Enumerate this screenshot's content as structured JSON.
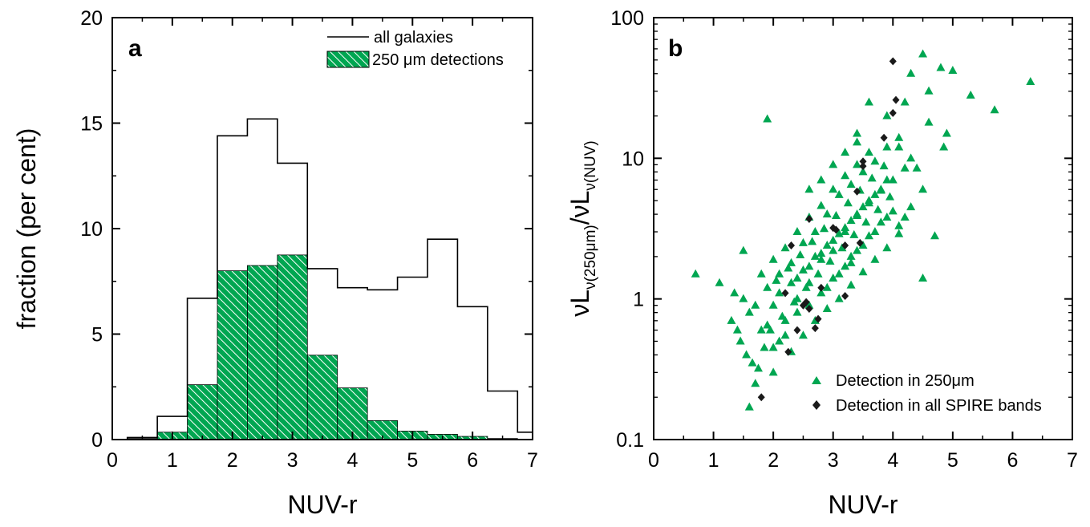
{
  "chart_data": [
    {
      "type": "bar",
      "panel_label": "a",
      "xlabel": "NUV-r",
      "ylabel": "fraction (per cent)",
      "xlim": [
        0,
        7
      ],
      "ylim": [
        0,
        20
      ],
      "xticks": [
        "0",
        "1",
        "2",
        "3",
        "4",
        "5",
        "6",
        "7"
      ],
      "yticks": [
        "0",
        "5",
        "10",
        "15",
        "20"
      ],
      "grid": false,
      "legend_position": "top-right",
      "bin_edges": [
        0.25,
        0.75,
        1.25,
        1.75,
        2.25,
        2.75,
        3.25,
        3.75,
        4.25,
        4.75,
        5.25,
        5.75,
        6.25,
        6.75,
        7.25
      ],
      "series": [
        {
          "name": "all galaxies",
          "style": "step-outline",
          "color": "#000000",
          "values": [
            0.1,
            1.1,
            6.7,
            14.4,
            15.2,
            13.1,
            8.1,
            7.2,
            7.1,
            7.7,
            9.5,
            6.3,
            2.3,
            0.35
          ]
        },
        {
          "name": "250 μm detections",
          "style": "hatched-fill",
          "color": "#00a651",
          "values": [
            0.05,
            0.35,
            2.6,
            8.0,
            8.25,
            8.75,
            4.0,
            2.45,
            0.9,
            0.4,
            0.25,
            0.15,
            0.05,
            0.02
          ]
        }
      ]
    },
    {
      "type": "scatter",
      "panel_label": "b",
      "xlabel": "NUV-r",
      "ylabel_main": "νL",
      "ylabel_sub1": "ν(250μm)",
      "ylabel_mid": "/νL",
      "ylabel_sub2": "ν(NUV)",
      "xlim": [
        0,
        7
      ],
      "ylim": [
        0.1,
        100
      ],
      "yscale": "log",
      "xticks": [
        "0",
        "1",
        "2",
        "3",
        "4",
        "5",
        "6",
        "7"
      ],
      "yticks": [
        "0.1",
        "1",
        "10",
        "100"
      ],
      "grid": false,
      "legend_position": "bottom-right",
      "series": [
        {
          "name": "Detection in 250μm",
          "marker": "triangle",
          "color": "#00a651",
          "points": [
            [
              0.7,
              1.5
            ],
            [
              1.1,
              1.3
            ],
            [
              1.9,
              19
            ],
            [
              4.5,
              55
            ],
            [
              4.8,
              44
            ],
            [
              5.0,
              42
            ],
            [
              5.3,
              28
            ],
            [
              5.7,
              22
            ],
            [
              6.3,
              35
            ],
            [
              4.3,
              40
            ],
            [
              4.6,
              30
            ],
            [
              4.2,
              25
            ],
            [
              1.6,
              0.17
            ],
            [
              1.7,
              0.25
            ],
            [
              1.5,
              2.2
            ],
            [
              1.4,
              0.6
            ],
            [
              2.0,
              0.3
            ],
            [
              1.3,
              0.7
            ],
            [
              1.35,
              1.1
            ],
            [
              4.5,
              1.4
            ],
            [
              4.7,
              2.8
            ],
            [
              4.2,
              3.8
            ],
            [
              4.9,
              15
            ],
            [
              4.85,
              12
            ],
            [
              4.4,
              8.5
            ],
            [
              3.6,
              25
            ],
            [
              3.4,
              15
            ],
            [
              3.9,
              20
            ],
            [
              4.1,
              12
            ],
            [
              4.6,
              18
            ],
            [
              1.5,
              1.0
            ],
            [
              1.6,
              0.8
            ],
            [
              1.8,
              0.6
            ],
            [
              1.9,
              1.2
            ],
            [
              2.0,
              0.9
            ],
            [
              2.1,
              1.5
            ],
            [
              2.2,
              0.7
            ],
            [
              2.3,
              1.8
            ],
            [
              2.4,
              1.0
            ],
            [
              2.5,
              2.5
            ],
            [
              2.6,
              1.3
            ],
            [
              2.7,
              3.0
            ],
            [
              2.8,
              1.9
            ],
            [
              2.9,
              4.0
            ],
            [
              3.0,
              2.2
            ],
            [
              3.1,
              5.5
            ],
            [
              3.2,
              3.0
            ],
            [
              3.3,
              6.5
            ],
            [
              3.4,
              4.0
            ],
            [
              3.5,
              8.0
            ],
            [
              3.6,
              5.0
            ],
            [
              3.7,
              9.5
            ],
            [
              3.8,
              6.0
            ],
            [
              3.9,
              12
            ],
            [
              4.0,
              7.0
            ],
            [
              4.1,
              14
            ],
            [
              4.2,
              8.5
            ],
            [
              4.3,
              10
            ],
            [
              2.0,
              0.45
            ],
            [
              2.2,
              0.55
            ],
            [
              2.4,
              0.8
            ],
            [
              2.6,
              0.9
            ],
            [
              2.8,
              1.1
            ],
            [
              3.0,
              1.4
            ],
            [
              3.2,
              1.7
            ],
            [
              3.4,
              2.2
            ],
            [
              3.6,
              2.8
            ],
            [
              3.8,
              3.5
            ],
            [
              4.0,
              4.2
            ],
            [
              2.1,
              1.1
            ],
            [
              2.3,
              1.3
            ],
            [
              2.5,
              1.6
            ],
            [
              2.7,
              2.0
            ],
            [
              2.9,
              2.4
            ],
            [
              3.1,
              2.9
            ],
            [
              3.3,
              3.6
            ],
            [
              3.5,
              4.5
            ],
            [
              3.7,
              5.5
            ],
            [
              3.9,
              7.0
            ],
            [
              1.8,
              1.5
            ],
            [
              2.0,
              1.9
            ],
            [
              2.2,
              2.3
            ],
            [
              2.4,
              3.0
            ],
            [
              2.6,
              3.8
            ],
            [
              2.8,
              4.6
            ],
            [
              3.0,
              6.0
            ],
            [
              3.2,
              7.5
            ],
            [
              3.4,
              9.0
            ],
            [
              3.6,
              11
            ],
            [
              1.7,
              0.9
            ],
            [
              1.9,
              0.65
            ],
            [
              2.1,
              0.5
            ],
            [
              2.3,
              0.42
            ],
            [
              2.5,
              0.55
            ],
            [
              2.7,
              0.7
            ],
            [
              2.9,
              0.85
            ],
            [
              3.1,
              1.0
            ],
            [
              3.3,
              1.25
            ],
            [
              3.5,
              1.55
            ],
            [
              3.7,
              1.9
            ],
            [
              3.9,
              2.3
            ],
            [
              4.1,
              2.9
            ],
            [
              2.15,
              0.75
            ],
            [
              2.35,
              0.95
            ],
            [
              2.55,
              1.2
            ],
            [
              2.75,
              1.5
            ],
            [
              2.95,
              1.85
            ],
            [
              3.15,
              2.3
            ],
            [
              3.35,
              2.85
            ],
            [
              3.55,
              3.5
            ],
            [
              3.75,
              4.3
            ],
            [
              3.95,
              5.3
            ],
            [
              2.05,
              1.35
            ],
            [
              2.25,
              1.65
            ],
            [
              2.45,
              2.05
            ],
            [
              2.65,
              2.55
            ],
            [
              2.85,
              3.15
            ],
            [
              3.05,
              3.9
            ],
            [
              3.25,
              4.8
            ],
            [
              3.45,
              5.9
            ],
            [
              3.65,
              7.2
            ],
            [
              3.85,
              8.8
            ],
            [
              1.45,
              0.5
            ],
            [
              1.55,
              0.4
            ],
            [
              1.65,
              0.35
            ],
            [
              1.75,
              0.32
            ],
            [
              1.85,
              0.45
            ],
            [
              1.95,
              0.6
            ],
            [
              2.6,
              6.0
            ],
            [
              2.8,
              7.0
            ],
            [
              3.0,
              9.0
            ],
            [
              3.2,
              11
            ],
            [
              3.4,
              13
            ],
            [
              3.3,
              2.0
            ],
            [
              3.5,
              2.4
            ],
            [
              3.7,
              3.0
            ],
            [
              3.9,
              3.8
            ],
            [
              4.1,
              3.3
            ],
            [
              4.3,
              4.5
            ],
            [
              4.5,
              6.0
            ],
            [
              2.9,
              1.2
            ],
            [
              3.1,
              1.5
            ],
            [
              3.3,
              1.8
            ],
            [
              2.4,
              1.4
            ],
            [
              2.6,
              1.7
            ],
            [
              2.8,
              2.1
            ],
            [
              3.0,
              2.6
            ],
            [
              3.2,
              3.2
            ],
            [
              3.4,
              3.9
            ],
            [
              3.6,
              4.8
            ],
            [
              3.8,
              5.9
            ]
          ]
        },
        {
          "name": "Detection in all SPIRE bands",
          "marker": "diamond",
          "color": "#1a1a1a",
          "points": [
            [
              1.8,
              0.2
            ],
            [
              2.25,
              0.42
            ],
            [
              2.2,
              1.1
            ],
            [
              2.4,
              0.6
            ],
            [
              2.5,
              0.9
            ],
            [
              2.55,
              0.95
            ],
            [
              2.6,
              0.85
            ],
            [
              2.7,
              0.62
            ],
            [
              2.75,
              0.72
            ],
            [
              2.8,
              1.2
            ],
            [
              2.3,
              2.4
            ],
            [
              2.6,
              3.7
            ],
            [
              3.0,
              3.2
            ],
            [
              3.05,
              3.1
            ],
            [
              3.2,
              2.4
            ],
            [
              3.2,
              1.05
            ],
            [
              3.4,
              5.8
            ],
            [
              3.5,
              9.5
            ],
            [
              3.5,
              8.8
            ],
            [
              3.45,
              2.5
            ],
            [
              3.85,
              14
            ],
            [
              4.0,
              21
            ],
            [
              4.05,
              26
            ],
            [
              4.0,
              49
            ]
          ]
        }
      ]
    }
  ]
}
